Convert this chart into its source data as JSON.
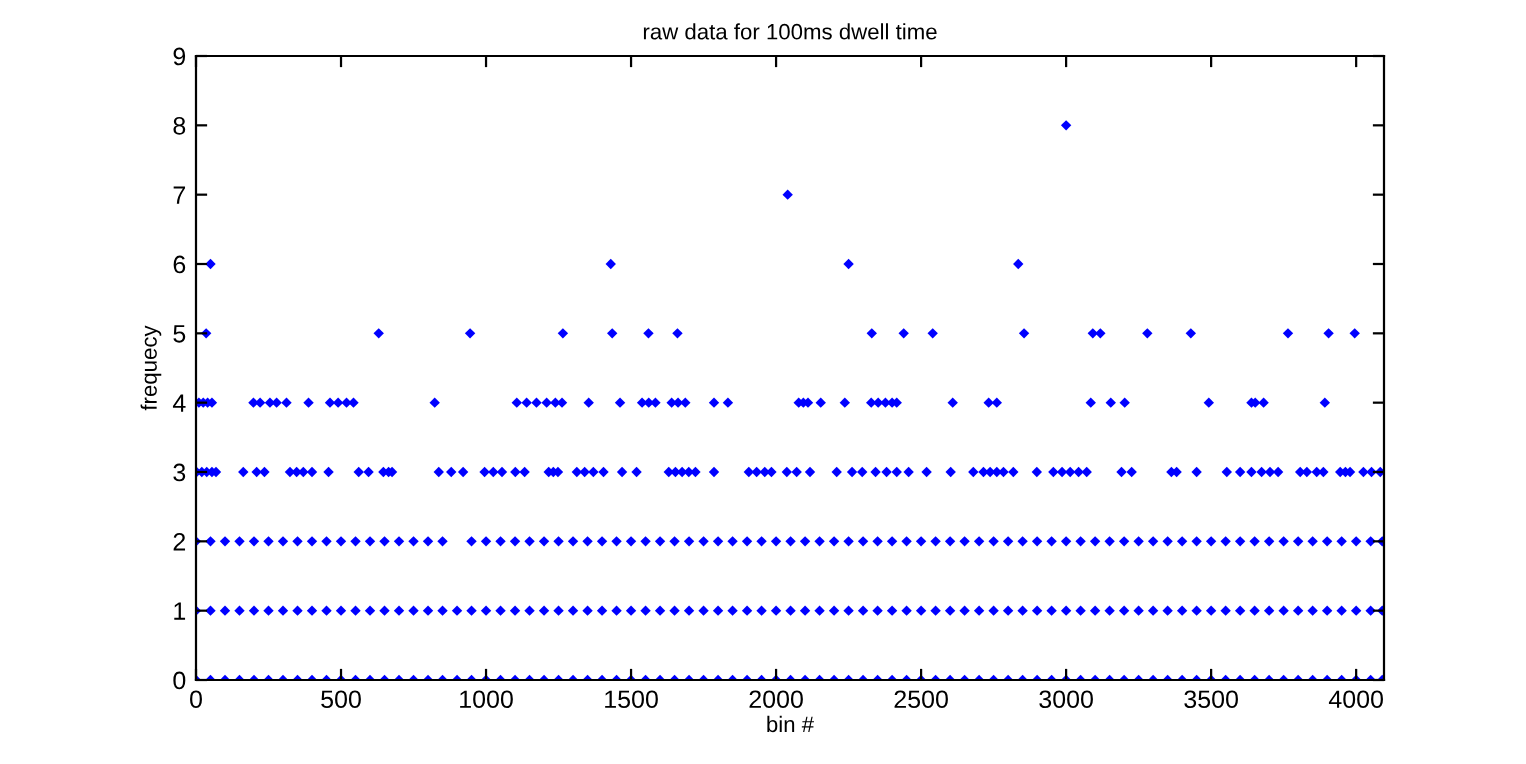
{
  "chart_data": {
    "type": "scatter",
    "title": "raw data for 100ms dwell time",
    "xlabel": "bin #",
    "ylabel": "frequecy",
    "xlim": [
      0,
      4096
    ],
    "ylim": [
      0,
      9
    ],
    "xticks": [
      0,
      500,
      1000,
      1500,
      2000,
      2500,
      3000,
      3500,
      4000
    ],
    "yticks": [
      0,
      1,
      2,
      3,
      4,
      5,
      6,
      7,
      8,
      9
    ],
    "grid": false,
    "marker": "diamond",
    "series": [
      {
        "color": "#0000ff",
        "x": [
          0,
          50,
          100,
          150,
          200,
          250,
          300,
          350,
          400,
          450,
          500,
          550,
          600,
          650,
          700,
          750,
          800,
          850,
          900,
          950,
          1000,
          1050,
          1100,
          1150,
          1200,
          1250,
          1300,
          1350,
          1400,
          1450,
          1500,
          1550,
          1600,
          1650,
          1700,
          1750,
          1800,
          1850,
          1900,
          1950,
          2000,
          2050,
          2100,
          2150,
          2200,
          2250,
          2300,
          2350,
          2400,
          2450,
          2500,
          2550,
          2600,
          2650,
          2700,
          2750,
          2800,
          2850,
          2900,
          2950,
          3000,
          3050,
          3100,
          3150,
          3200,
          3250,
          3300,
          3350,
          3400,
          3450,
          3500,
          3550,
          3600,
          3650,
          3700,
          3750,
          3800,
          3850,
          3900,
          3950,
          4000,
          4050,
          4090
        ],
        "values": [
          0,
          0,
          0,
          0,
          0,
          0,
          0,
          0,
          0,
          0,
          0,
          0,
          0,
          0,
          0,
          0,
          0,
          0,
          0,
          0,
          0,
          0,
          0,
          0,
          0,
          0,
          0,
          0,
          0,
          0,
          0,
          0,
          0,
          0,
          0,
          0,
          0,
          0,
          0,
          0,
          0,
          0,
          0,
          0,
          0,
          0,
          0,
          0,
          0,
          0,
          0,
          0,
          0,
          0,
          0,
          0,
          0,
          0,
          0,
          0,
          0,
          0,
          0,
          0,
          0,
          0,
          0,
          0,
          0,
          0,
          0,
          0,
          0,
          0,
          0,
          0,
          0,
          0,
          0,
          0,
          0,
          0,
          0
        ]
      },
      {
        "color": "#0000ff",
        "x": [
          0,
          50,
          100,
          150,
          200,
          250,
          300,
          350,
          400,
          450,
          500,
          550,
          600,
          650,
          700,
          750,
          800,
          850,
          900,
          950,
          1000,
          1050,
          1100,
          1150,
          1200,
          1250,
          1300,
          1350,
          1400,
          1450,
          1500,
          1550,
          1600,
          1650,
          1700,
          1750,
          1800,
          1850,
          1900,
          1950,
          2000,
          2050,
          2100,
          2150,
          2200,
          2250,
          2300,
          2350,
          2400,
          2450,
          2500,
          2550,
          2600,
          2650,
          2700,
          2750,
          2800,
          2850,
          2900,
          2950,
          3000,
          3050,
          3100,
          3150,
          3200,
          3250,
          3300,
          3350,
          3400,
          3450,
          3500,
          3550,
          3600,
          3650,
          3700,
          3750,
          3800,
          3850,
          3900,
          3950,
          4000,
          4050,
          4090
        ],
        "values": [
          1,
          1,
          1,
          1,
          1,
          1,
          1,
          1,
          1,
          1,
          1,
          1,
          1,
          1,
          1,
          1,
          1,
          1,
          1,
          1,
          1,
          1,
          1,
          1,
          1,
          1,
          1,
          1,
          1,
          1,
          1,
          1,
          1,
          1,
          1,
          1,
          1,
          1,
          1,
          1,
          1,
          1,
          1,
          1,
          1,
          1,
          1,
          1,
          1,
          1,
          1,
          1,
          1,
          1,
          1,
          1,
          1,
          1,
          1,
          1,
          1,
          1,
          1,
          1,
          1,
          1,
          1,
          1,
          1,
          1,
          1,
          1,
          1,
          1,
          1,
          1,
          1,
          1,
          1,
          1,
          1,
          1,
          1
        ]
      },
      {
        "color": "#0000ff",
        "x": [
          0,
          50,
          100,
          150,
          200,
          250,
          300,
          350,
          400,
          450,
          500,
          550,
          600,
          650,
          700,
          750,
          800,
          850,
          950,
          1000,
          1050,
          1100,
          1150,
          1200,
          1250,
          1300,
          1350,
          1400,
          1450,
          1500,
          1550,
          1600,
          1650,
          1700,
          1750,
          1800,
          1850,
          1900,
          1950,
          2000,
          2050,
          2100,
          2150,
          2200,
          2250,
          2300,
          2350,
          2400,
          2450,
          2500,
          2550,
          2600,
          2650,
          2700,
          2750,
          2800,
          2850,
          2900,
          2950,
          3000,
          3050,
          3100,
          3150,
          3200,
          3250,
          3300,
          3350,
          3400,
          3450,
          3500,
          3550,
          3600,
          3650,
          3700,
          3750,
          3800,
          3850,
          3900,
          3950,
          4000,
          4050,
          4090
        ],
        "values": [
          2,
          2,
          2,
          2,
          2,
          2,
          2,
          2,
          2,
          2,
          2,
          2,
          2,
          2,
          2,
          2,
          2,
          2,
          2,
          2,
          2,
          2,
          2,
          2,
          2,
          2,
          2,
          2,
          2,
          2,
          2,
          2,
          2,
          2,
          2,
          2,
          2,
          2,
          2,
          2,
          2,
          2,
          2,
          2,
          2,
          2,
          2,
          2,
          2,
          2,
          2,
          2,
          2,
          2,
          2,
          2,
          2,
          2,
          2,
          2,
          2,
          2,
          2,
          2,
          2,
          2,
          2,
          2,
          2,
          2,
          2,
          2,
          2,
          2,
          2,
          2,
          2,
          2,
          2,
          2,
          2,
          2
        ]
      },
      {
        "color": "#0000ff",
        "x": [
          2,
          20,
          37,
          55,
          69,
          163,
          209,
          236,
          324,
          347,
          370,
          400,
          457,
          561,
          595,
          646,
          664,
          676,
          837,
          880,
          921,
          995,
          1025,
          1055,
          1101,
          1133,
          1216,
          1232,
          1248,
          1313,
          1340,
          1370,
          1405,
          1469,
          1519,
          1630,
          1653,
          1676,
          1699,
          1722,
          1786,
          1906,
          1933,
          1961,
          1984,
          2037,
          2071,
          2117,
          2209,
          2262,
          2297,
          2343,
          2381,
          2416,
          2457,
          2519,
          2602,
          2680,
          2715,
          2738,
          2761,
          2784,
          2818,
          2899,
          2956,
          2986,
          3014,
          3043,
          3071,
          3191,
          3226,
          3363,
          3381,
          3450,
          3554,
          3600,
          3639,
          3674,
          3703,
          3731,
          3807,
          3830,
          3864,
          3887,
          3945,
          3963,
          3979,
          4025,
          4053,
          4083
        ],
        "values": [
          3,
          3,
          3,
          3,
          3,
          3,
          3,
          3,
          3,
          3,
          3,
          3,
          3,
          3,
          3,
          3,
          3,
          3,
          3,
          3,
          3,
          3,
          3,
          3,
          3,
          3,
          3,
          3,
          3,
          3,
          3,
          3,
          3,
          3,
          3,
          3,
          3,
          3,
          3,
          3,
          3,
          3,
          3,
          3,
          3,
          3,
          3,
          3,
          3,
          3,
          3,
          3,
          3,
          3,
          3,
          3,
          3,
          3,
          3,
          3,
          3,
          3,
          3,
          3,
          3,
          3,
          3,
          3,
          3,
          3,
          3,
          3,
          3,
          3,
          3,
          3,
          3,
          3,
          3,
          3,
          3,
          3,
          3,
          3,
          3,
          3,
          3,
          3,
          3,
          3
        ]
      },
      {
        "color": "#0000ff",
        "x": [
          10,
          25,
          40,
          55,
          198,
          221,
          255,
          278,
          312,
          388,
          462,
          490,
          519,
          543,
          823,
          1106,
          1140,
          1174,
          1209,
          1239,
          1262,
          1354,
          1462,
          1538,
          1561,
          1584,
          1640,
          1662,
          1687,
          1786,
          1834,
          2078,
          2094,
          2110,
          2154,
          2237,
          2328,
          2352,
          2377,
          2400,
          2416,
          2609,
          2733,
          2761,
          3085,
          3154,
          3202,
          3492,
          3639,
          3652,
          3681,
          3892
        ],
        "values": [
          4,
          4,
          4,
          4,
          4,
          4,
          4,
          4,
          4,
          4,
          4,
          4,
          4,
          4,
          4,
          4,
          4,
          4,
          4,
          4,
          4,
          4,
          4,
          4,
          4,
          4,
          4,
          4,
          4,
          4,
          4,
          4,
          4,
          4,
          4,
          4,
          4,
          4,
          4,
          4,
          4,
          4,
          4,
          4,
          4,
          4,
          4,
          4,
          4,
          4,
          4,
          4
        ]
      },
      {
        "color": "#0000ff",
        "x": [
          35,
          630,
          945,
          1265,
          1435,
          1560,
          1660,
          2330,
          2440,
          2540,
          2855,
          3092,
          3118,
          3280,
          3430,
          3765,
          3905,
          3995
        ],
        "values": [
          5,
          5,
          5,
          5,
          5,
          5,
          5,
          5,
          5,
          5,
          5,
          5,
          5,
          5,
          5,
          5,
          5,
          5
        ]
      },
      {
        "color": "#0000ff",
        "x": [
          50,
          1430,
          2250,
          2835
        ],
        "values": [
          6,
          6,
          6,
          6
        ]
      },
      {
        "color": "#0000ff",
        "x": [
          2040
        ],
        "values": [
          7
        ]
      },
      {
        "color": "#0000ff",
        "x": [
          3000
        ],
        "values": [
          8
        ]
      }
    ]
  }
}
